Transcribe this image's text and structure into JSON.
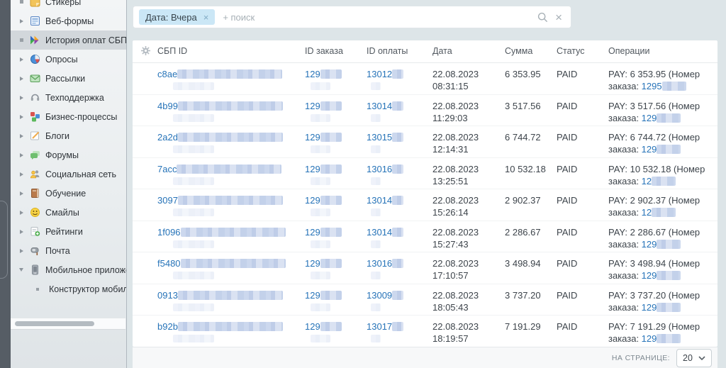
{
  "sidebar": {
    "items": [
      {
        "label": "Стикеры",
        "icon": "sticker-icon",
        "marker": "leaf",
        "selected": false,
        "child": false
      },
      {
        "label": "Веб-формы",
        "icon": "webform-icon",
        "marker": "collapsed",
        "selected": false,
        "child": false
      },
      {
        "label": "История оплат СБП Сберб",
        "icon": "sbp-icon",
        "marker": "leaf",
        "selected": true,
        "child": false
      },
      {
        "label": "Опросы",
        "icon": "poll-icon",
        "marker": "collapsed",
        "selected": false,
        "child": false
      },
      {
        "label": "Рассылки",
        "icon": "mailing-icon",
        "marker": "collapsed",
        "selected": false,
        "child": false
      },
      {
        "label": "Техподдержка",
        "icon": "support-icon",
        "marker": "collapsed",
        "selected": false,
        "child": false
      },
      {
        "label": "Бизнес-процессы",
        "icon": "bizproc-icon",
        "marker": "collapsed",
        "selected": false,
        "child": false
      },
      {
        "label": "Блоги",
        "icon": "blog-icon",
        "marker": "collapsed",
        "selected": false,
        "child": false
      },
      {
        "label": "Форумы",
        "icon": "forum-icon",
        "marker": "collapsed",
        "selected": false,
        "child": false
      },
      {
        "label": "Социальная сеть",
        "icon": "social-icon",
        "marker": "collapsed",
        "selected": false,
        "child": false
      },
      {
        "label": "Обучение",
        "icon": "training-icon",
        "marker": "collapsed",
        "selected": false,
        "child": false
      },
      {
        "label": "Смайлы",
        "icon": "smile-icon",
        "marker": "collapsed",
        "selected": false,
        "child": false
      },
      {
        "label": "Рейтинги",
        "icon": "rating-icon",
        "marker": "collapsed",
        "selected": false,
        "child": false
      },
      {
        "label": "Почта",
        "icon": "mail-icon",
        "marker": "collapsed",
        "selected": false,
        "child": false
      },
      {
        "label": "Мобильное приложение",
        "icon": "mobile-icon",
        "marker": "expanded",
        "selected": false,
        "child": false
      },
      {
        "label": "Конструктор мобильных п",
        "icon": null,
        "marker": "leaf",
        "selected": false,
        "child": true
      }
    ]
  },
  "filter": {
    "chip_label": "Дата: Вчера",
    "chip_remove": "×",
    "search_placeholder": "+ поиск",
    "clear_label": "×"
  },
  "table": {
    "columns": [
      "СБП ID",
      "ID заказа",
      "ID оплаты",
      "Дата",
      "Сумма",
      "Статус",
      "Операции"
    ],
    "rows": [
      {
        "sbp_id_prefix": "c8ae",
        "order_id_prefix": "129",
        "payment_id_prefix": "13012",
        "date": "22.08.2023",
        "time": "08:31:15",
        "amount": "6 353.95",
        "status": "PAID",
        "operation_text": "PAY: 6 353.95 (Номер заказа:",
        "operation_order_prefix": "1295"
      },
      {
        "sbp_id_prefix": "4b99",
        "order_id_prefix": "129",
        "payment_id_prefix": "13014",
        "date": "22.08.2023",
        "time": "11:29:03",
        "amount": "3 517.56",
        "status": "PAID",
        "operation_text": "PAY: 3 517.56 (Номер заказа:",
        "operation_order_prefix": "129"
      },
      {
        "sbp_id_prefix": "2a2d",
        "order_id_prefix": "129",
        "payment_id_prefix": "13015",
        "date": "22.08.2023",
        "time": "12:14:31",
        "amount": "6 744.72",
        "status": "PAID",
        "operation_text": "PAY: 6 744.72 (Номер заказа:",
        "operation_order_prefix": "129"
      },
      {
        "sbp_id_prefix": "7acc",
        "order_id_prefix": "129",
        "payment_id_prefix": "13016",
        "date": "22.08.2023",
        "time": "13:25:51",
        "amount": "10 532.18",
        "status": "PAID",
        "operation_text": "PAY: 10 532.18 (Номер заказа:",
        "operation_order_prefix": "12"
      },
      {
        "sbp_id_prefix": "3097",
        "order_id_prefix": "129",
        "payment_id_prefix": "13014",
        "date": "22.08.2023",
        "time": "15:26:14",
        "amount": "2 902.37",
        "status": "PAID",
        "operation_text": "PAY: 2 902.37 (Номер заказа:",
        "operation_order_prefix": "12"
      },
      {
        "sbp_id_prefix": "1f096",
        "order_id_prefix": "129",
        "payment_id_prefix": "13014",
        "date": "22.08.2023",
        "time": "15:27:43",
        "amount": "2 286.67",
        "status": "PAID",
        "operation_text": "PAY: 2 286.67 (Номер заказа:",
        "operation_order_prefix": "129"
      },
      {
        "sbp_id_prefix": "f5480",
        "order_id_prefix": "129",
        "payment_id_prefix": "13016",
        "date": "22.08.2023",
        "time": "17:10:57",
        "amount": "3 498.94",
        "status": "PAID",
        "operation_text": "PAY: 3 498.94 (Номер заказа:",
        "operation_order_prefix": "129"
      },
      {
        "sbp_id_prefix": "0913",
        "order_id_prefix": "129",
        "payment_id_prefix": "13009",
        "date": "22.08.2023",
        "time": "18:05:43",
        "amount": "3 737.20",
        "status": "PAID",
        "operation_text": "PAY: 3 737.20 (Номер заказа:",
        "operation_order_prefix": "129"
      },
      {
        "sbp_id_prefix": "b92b",
        "order_id_prefix": "129",
        "payment_id_prefix": "13017",
        "date": "22.08.2023",
        "time": "18:19:57",
        "amount": "7 191.29",
        "status": "PAID",
        "operation_text": "PAY: 7 191.29 (Номер заказа:",
        "operation_order_prefix": "129"
      }
    ]
  },
  "pagination": {
    "label": "НА СТРАНИЦЕ:",
    "page_size": "20"
  },
  "colors": {
    "link": "#2673b8",
    "chip_bg": "#cbe7f6",
    "selected_item_bg": "#d2d7db",
    "main_bg": "#dde5e8",
    "dark_strip": "#565d65",
    "status_paid_text": "#3d444b"
  }
}
